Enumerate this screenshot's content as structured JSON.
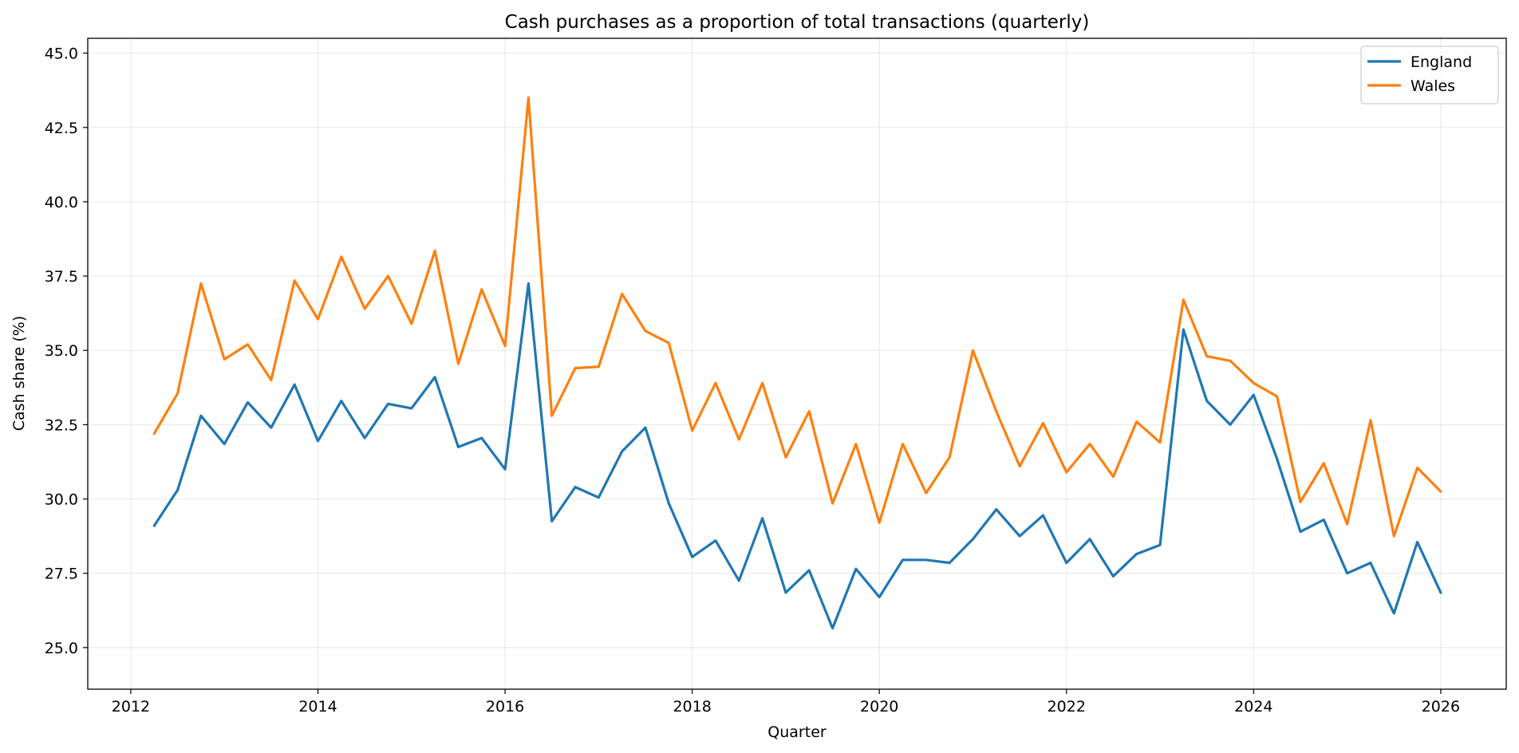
{
  "chart_data": {
    "type": "line",
    "title": "Cash purchases as a proportion of total transactions (quarterly)",
    "xlabel": "Quarter",
    "ylabel": "Cash share (%)",
    "xlim": [
      2011.54,
      2026.7
    ],
    "ylim": [
      23.6,
      45.5
    ],
    "x_ticks": [
      2012,
      2014,
      2016,
      2018,
      2020,
      2022,
      2024,
      2026
    ],
    "y_ticks": [
      25.0,
      27.5,
      30.0,
      32.5,
      35.0,
      37.5,
      40.0,
      42.5,
      45.0
    ],
    "y_tick_labels": [
      "25.0",
      "27.5",
      "30.0",
      "32.5",
      "35.0",
      "37.5",
      "40.0",
      "42.5",
      "45.0"
    ],
    "grid": true,
    "legend_position": "top-right",
    "x": [
      "2012-04-01",
      "2012-07-01",
      "2012-10-01",
      "2013-01-01",
      "2013-04-01",
      "2013-07-01",
      "2013-10-01",
      "2014-01-01",
      "2014-04-01",
      "2014-07-01",
      "2014-10-01",
      "2015-01-01",
      "2015-04-01",
      "2015-07-01",
      "2015-10-01",
      "2016-01-01",
      "2016-04-01",
      "2016-07-01",
      "2016-10-01",
      "2017-01-01",
      "2017-04-01",
      "2017-07-01",
      "2017-10-01",
      "2018-01-01",
      "2018-04-01",
      "2018-07-01",
      "2018-10-01",
      "2019-01-01",
      "2019-04-01",
      "2019-07-01",
      "2019-10-01",
      "2020-01-01",
      "2020-04-01",
      "2020-07-01",
      "2020-10-01",
      "2021-01-01",
      "2021-04-01",
      "2021-07-01",
      "2021-10-01",
      "2022-01-01",
      "2022-04-01",
      "2022-07-01",
      "2022-10-01",
      "2023-01-01",
      "2023-04-01",
      "2023-07-01",
      "2023-10-01",
      "2024-01-01",
      "2024-04-01",
      "2024-07-01",
      "2024-10-01",
      "2025-01-01",
      "2025-04-01",
      "2025-07-01",
      "2025-10-01",
      "2026-01-01"
    ],
    "series": [
      {
        "name": "England",
        "color": "#1f77b4",
        "values": [
          29.1,
          30.3,
          32.8,
          31.85,
          33.25,
          32.4,
          33.85,
          31.95,
          33.3,
          32.05,
          33.2,
          33.05,
          34.1,
          31.75,
          32.05,
          31.0,
          37.25,
          29.25,
          30.4,
          30.05,
          31.6,
          32.4,
          29.85,
          28.05,
          28.6,
          27.25,
          29.35,
          26.85,
          27.6,
          25.65,
          27.65,
          26.7,
          27.95,
          27.95,
          27.85,
          28.65,
          29.65,
          28.75,
          29.45,
          27.85,
          28.65,
          27.4,
          28.15,
          28.45,
          35.7,
          33.3,
          32.5,
          33.5,
          31.35,
          28.9,
          29.3,
          27.5,
          27.85,
          26.15,
          28.55,
          26.85
        ]
      },
      {
        "name": "Wales",
        "color": "#ff7f0e",
        "values": [
          32.2,
          33.55,
          37.25,
          34.7,
          35.2,
          34.0,
          37.35,
          36.05,
          38.15,
          36.4,
          37.5,
          35.9,
          38.35,
          34.55,
          37.05,
          35.15,
          43.5,
          32.8,
          34.4,
          34.45,
          36.9,
          35.65,
          35.25,
          32.3,
          33.9,
          32.0,
          33.9,
          31.4,
          32.95,
          29.85,
          31.85,
          29.2,
          31.85,
          30.2,
          31.4,
          35.0,
          32.95,
          31.1,
          32.55,
          30.9,
          31.85,
          30.75,
          32.6,
          31.9,
          36.7,
          34.8,
          34.65,
          33.9,
          33.45,
          29.9,
          31.2,
          29.15,
          32.65,
          28.75,
          31.05,
          30.25
        ]
      }
    ]
  }
}
